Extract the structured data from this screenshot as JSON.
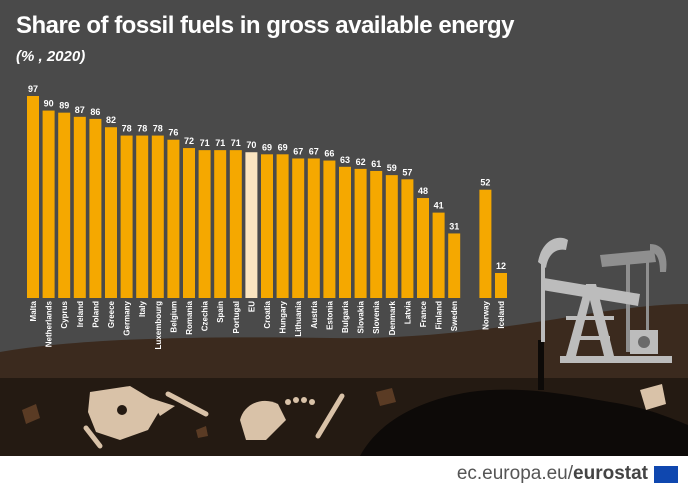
{
  "header": {
    "title": "Share of fossil fuels in gross available energy",
    "subtitle": "(% , 2020)"
  },
  "footer": {
    "site": "ec.europa.eu/",
    "brand": "eurostat"
  },
  "colors": {
    "background": "#4a4a4a",
    "bar": "#f5a800",
    "eu_bar": "#fbe5c0",
    "ground": "#3b2a1e",
    "underground": "#241a12"
  },
  "chart_data": {
    "type": "bar",
    "title": "Share of fossil fuels in gross available energy",
    "subtitle": "(% , 2020)",
    "categories": [
      "Malta",
      "Netherlands",
      "Cyprus",
      "Ireland",
      "Poland",
      "Greece",
      "Germany",
      "Italy",
      "Luxembourg",
      "Belgium",
      "Romania",
      "Czechia",
      "Spain",
      "Portugal",
      "EU",
      "Croatia",
      "Hungary",
      "Lithuania",
      "Austria",
      "Estonia",
      "Bulgaria",
      "Slovakia",
      "Slovenia",
      "Denmark",
      "Latvia",
      "France",
      "Finland",
      "Sweden",
      "Norway",
      "Iceland"
    ],
    "values": [
      97,
      90,
      89,
      87,
      86,
      82,
      78,
      78,
      78,
      76,
      72,
      71,
      71,
      71,
      70,
      69,
      69,
      67,
      67,
      66,
      63,
      62,
      61,
      59,
      57,
      48,
      41,
      31,
      52,
      12
    ],
    "highlight": "EU",
    "ylim": [
      0,
      100
    ],
    "grid": false,
    "legend": "none"
  }
}
